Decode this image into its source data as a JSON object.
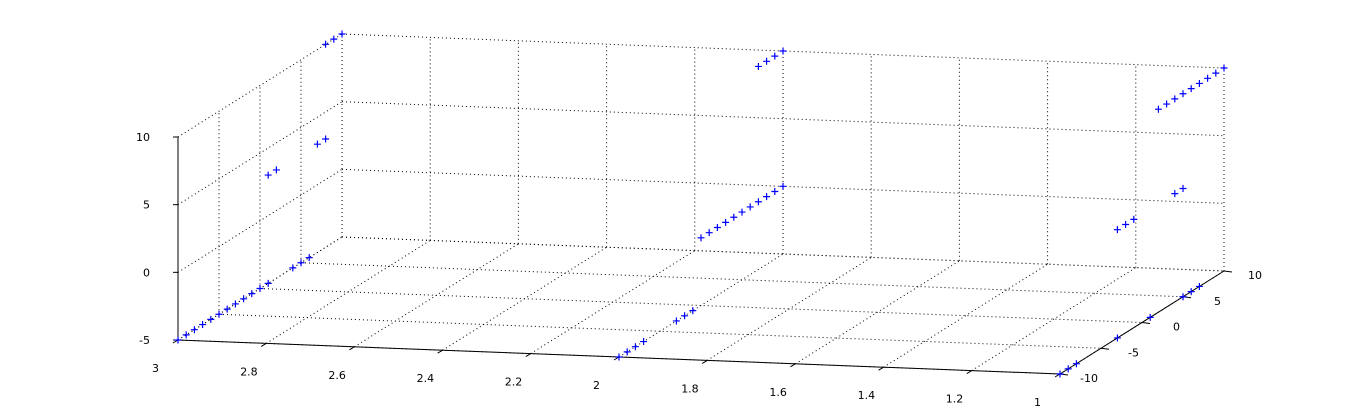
{
  "chart_data": {
    "type": "scatter",
    "projection": "3d",
    "marker": "+",
    "marker_color": "#0000ff",
    "grid": true,
    "xlim": [
      1,
      3
    ],
    "ylim": [
      -10,
      10
    ],
    "zlim": [
      -5,
      10
    ],
    "x_ticks": [
      "3",
      "2.8",
      "2.6",
      "2.4",
      "2.2",
      "2",
      "1.8",
      "1.6",
      "1.4",
      "1.2",
      "1"
    ],
    "y_ticks": [
      "-10",
      "-5",
      "0",
      "5",
      "10"
    ],
    "z_ticks": [
      "-5",
      "0",
      "5",
      "10"
    ],
    "series": [
      {
        "points": [
          [
            3,
            -10,
            -5
          ],
          [
            3,
            -9,
            -5
          ],
          [
            3,
            -8,
            -5
          ],
          [
            3,
            -7,
            -5
          ],
          [
            3,
            -6,
            -5
          ],
          [
            3,
            -5,
            -5
          ],
          [
            3,
            -4,
            -5
          ],
          [
            3,
            -3,
            -5
          ],
          [
            3,
            -2,
            -5
          ],
          [
            3,
            -1,
            -5
          ],
          [
            3,
            0,
            -5
          ],
          [
            3,
            1,
            -5
          ],
          [
            3,
            4,
            -5
          ],
          [
            3,
            5,
            -5
          ],
          [
            3,
            6,
            -5
          ],
          [
            3,
            1,
            3
          ],
          [
            3,
            2,
            3
          ],
          [
            3,
            7,
            3
          ],
          [
            3,
            8,
            3
          ],
          [
            3,
            8,
            10
          ],
          [
            3,
            9,
            10
          ],
          [
            3,
            10,
            10
          ],
          [
            2,
            -10,
            -5
          ],
          [
            2,
            -9,
            -5
          ],
          [
            2,
            -8,
            -5
          ],
          [
            2,
            -7,
            -5
          ],
          [
            2,
            -3,
            -5
          ],
          [
            2,
            -2,
            -5
          ],
          [
            2,
            -1,
            -5
          ],
          [
            2,
            0,
            0
          ],
          [
            2,
            1,
            0
          ],
          [
            2,
            2,
            0
          ],
          [
            2,
            3,
            0
          ],
          [
            2,
            4,
            0
          ],
          [
            2,
            5,
            0
          ],
          [
            2,
            6,
            0
          ],
          [
            2,
            7,
            0
          ],
          [
            2,
            8,
            0
          ],
          [
            2,
            9,
            0
          ],
          [
            2,
            10,
            0
          ],
          [
            2,
            7,
            10
          ],
          [
            2,
            8,
            10
          ],
          [
            2,
            9,
            10
          ],
          [
            2,
            10,
            10
          ],
          [
            1,
            -10,
            -5
          ],
          [
            1,
            -9,
            -5
          ],
          [
            1,
            -8,
            -5
          ],
          [
            1,
            -3,
            -5
          ],
          [
            1,
            1,
            -5
          ],
          [
            1,
            5,
            -5
          ],
          [
            1,
            6,
            -5
          ],
          [
            1,
            7,
            -5
          ],
          [
            1,
            -3,
            3
          ],
          [
            1,
            -2,
            3
          ],
          [
            1,
            -1,
            3
          ],
          [
            1,
            4,
            3
          ],
          [
            1,
            5,
            3
          ],
          [
            1,
            2,
            10
          ],
          [
            1,
            3,
            10
          ],
          [
            1,
            4,
            10
          ],
          [
            1,
            5,
            10
          ],
          [
            1,
            6,
            10
          ],
          [
            1,
            7,
            10
          ],
          [
            1,
            8,
            10
          ],
          [
            1,
            9,
            10
          ],
          [
            1,
            10,
            10
          ]
        ]
      }
    ]
  }
}
